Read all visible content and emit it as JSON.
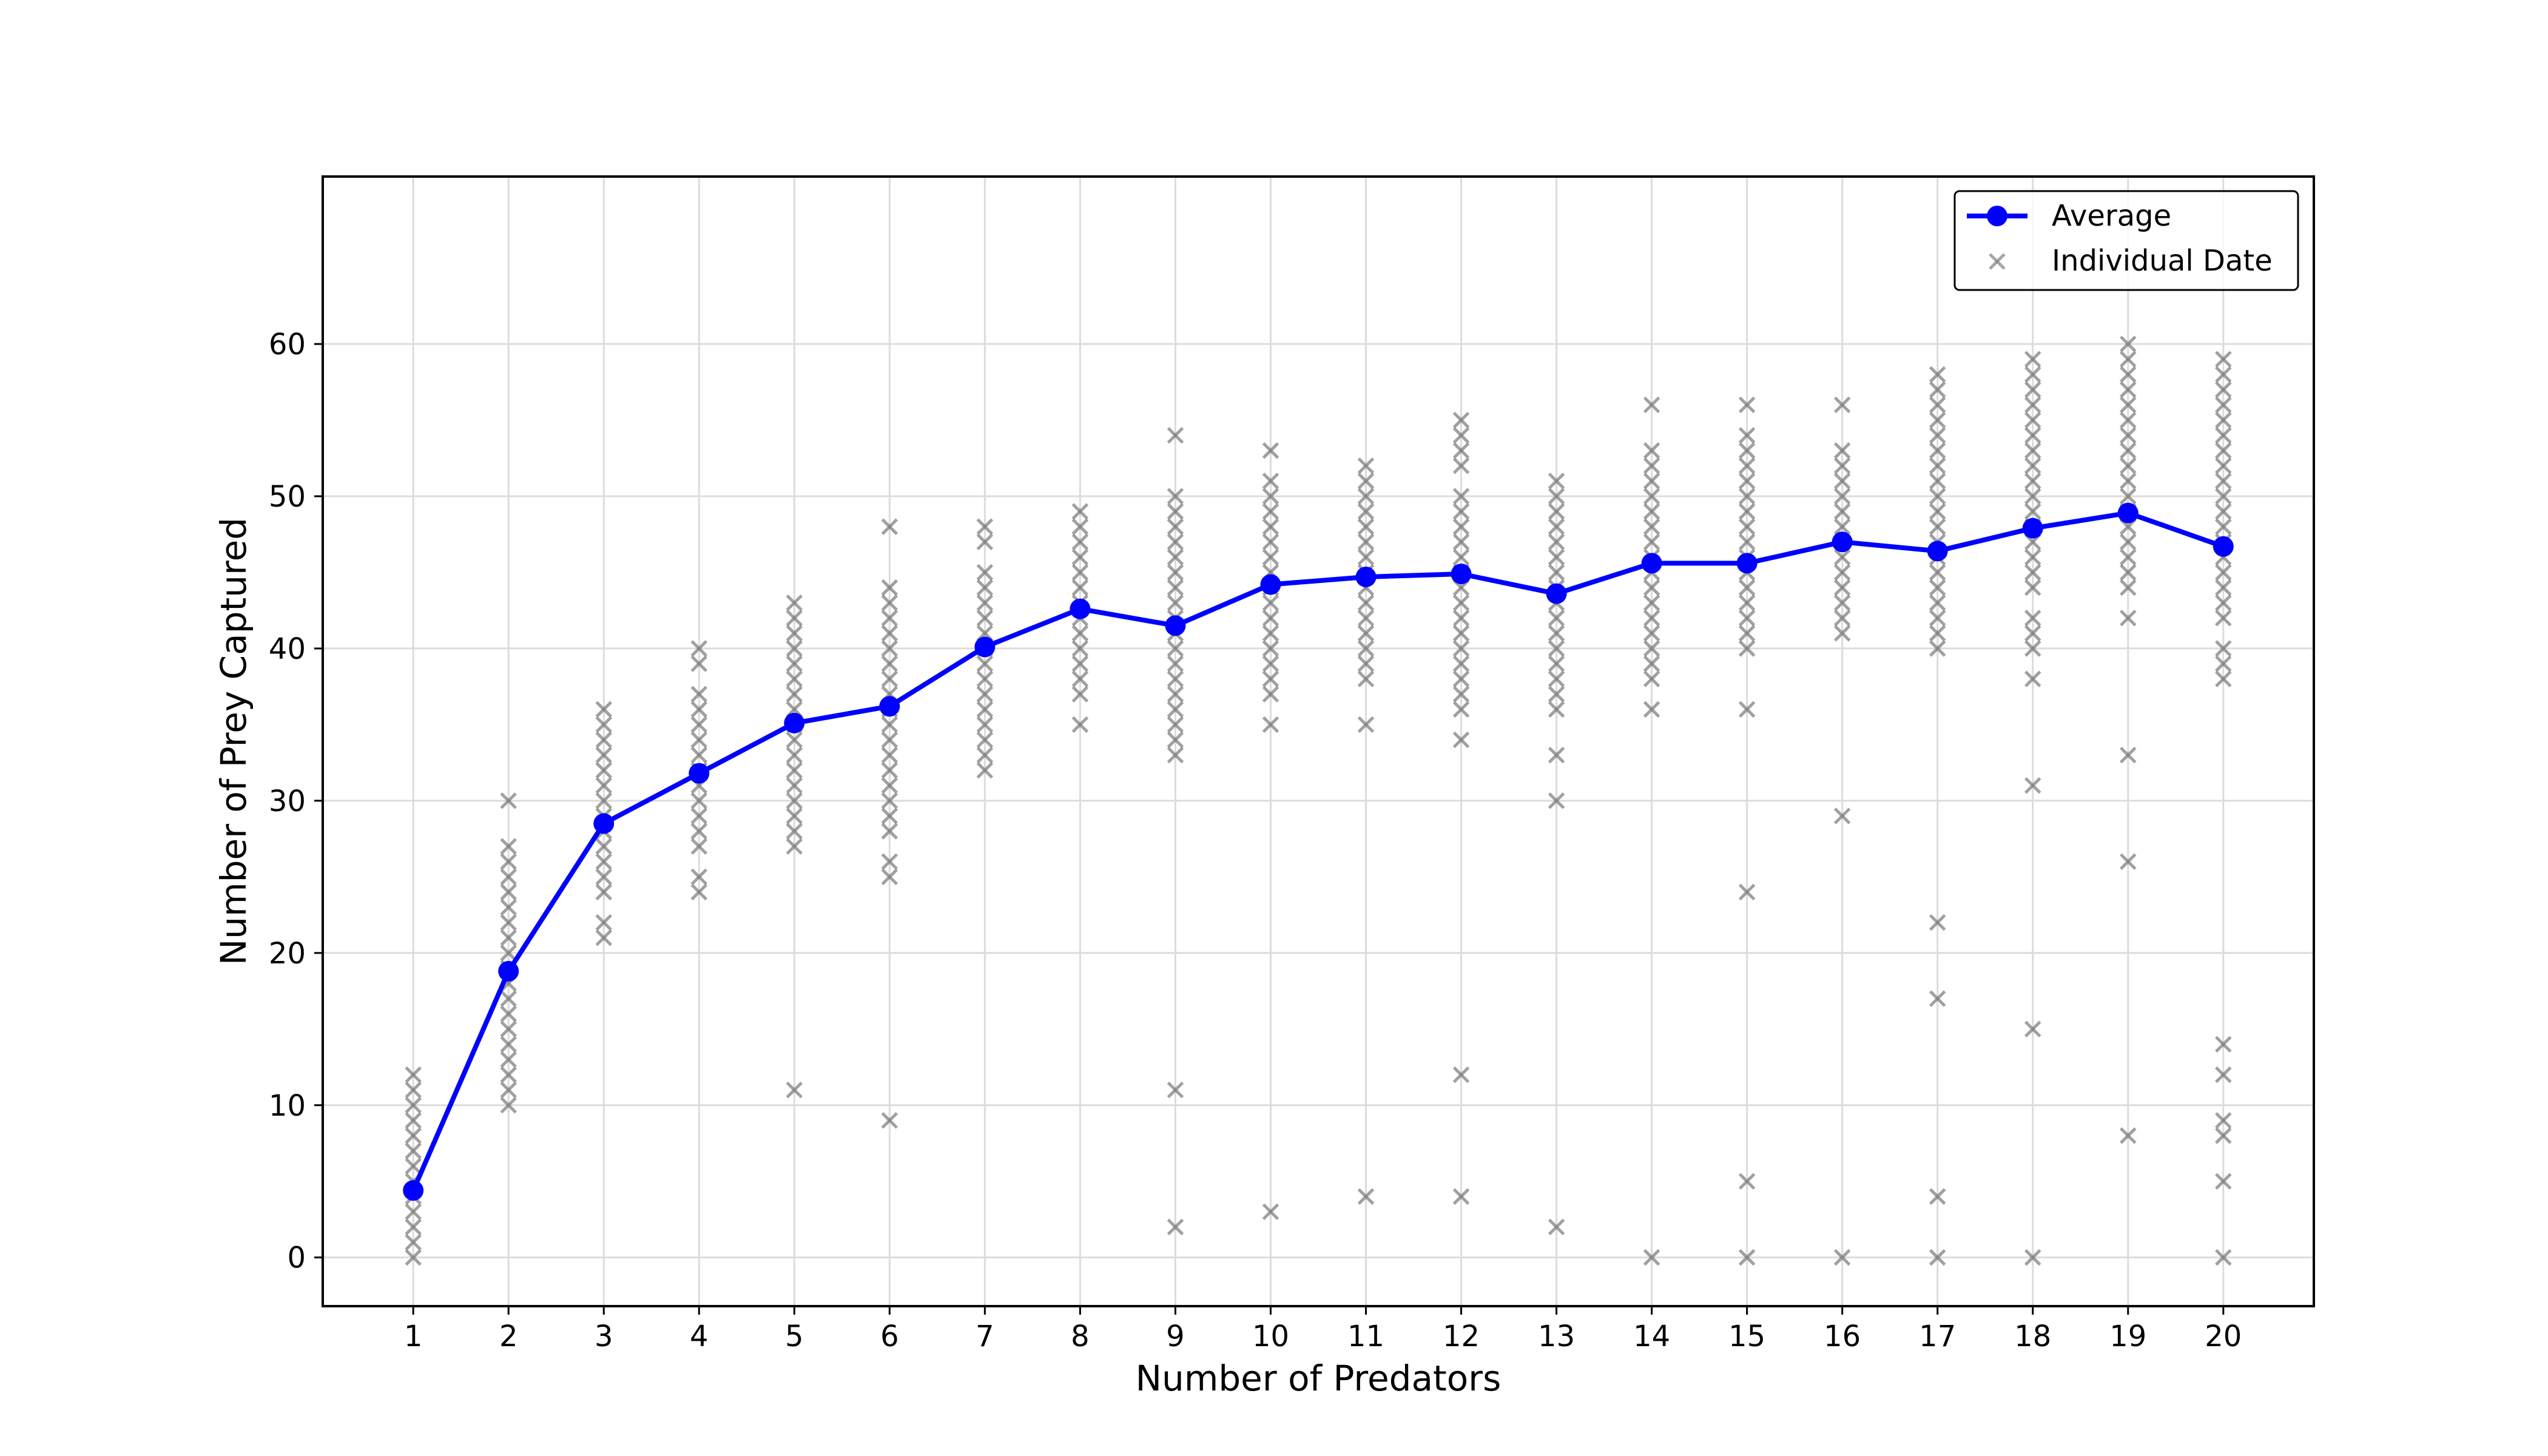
{
  "chart_data": {
    "type": "line",
    "title": "",
    "xlabel": "Number of Predators",
    "ylabel": "Number of Prey Captured",
    "xlim": [
      0.05,
      20.95
    ],
    "ylim": [
      -3.2,
      71
    ],
    "x_ticks": [
      1,
      2,
      3,
      4,
      5,
      6,
      7,
      8,
      9,
      10,
      11,
      12,
      13,
      14,
      15,
      16,
      17,
      18,
      19,
      20
    ],
    "y_ticks": [
      0,
      10,
      20,
      30,
      40,
      50,
      60
    ],
    "grid": true,
    "legend_position": "top-right",
    "colors": {
      "average": "#0000ff",
      "individual": "#808080"
    },
    "series": [
      {
        "name": "Average",
        "type": "line-marker",
        "x": [
          1,
          2,
          3,
          4,
          5,
          6,
          7,
          8,
          9,
          10,
          11,
          12,
          13,
          14,
          15,
          16,
          17,
          18,
          19,
          20
        ],
        "values": [
          4.4,
          18.8,
          28.5,
          31.8,
          35.1,
          36.2,
          40.1,
          42.6,
          41.5,
          44.2,
          44.7,
          44.9,
          43.6,
          45.6,
          45.6,
          47.0,
          46.4,
          47.9,
          48.9,
          46.7
        ]
      },
      {
        "name": "Individual Date",
        "type": "scatter",
        "points": [
          {
            "x": 1,
            "ys": [
              0,
              1,
              2,
              3,
              4,
              5,
              6,
              7,
              8,
              9,
              10,
              11,
              12
            ]
          },
          {
            "x": 2,
            "ys": [
              10,
              11,
              12,
              13,
              14,
              15,
              16,
              17,
              18,
              19,
              20,
              21,
              22,
              23,
              24,
              25,
              26,
              27,
              30
            ]
          },
          {
            "x": 3,
            "ys": [
              21,
              22,
              24,
              25,
              26,
              27,
              28,
              29,
              30,
              31,
              32,
              33,
              34,
              35,
              36
            ]
          },
          {
            "x": 4,
            "ys": [
              24,
              25,
              27,
              28,
              29,
              30,
              31,
              32,
              33,
              34,
              35,
              36,
              37,
              39,
              40
            ]
          },
          {
            "x": 5,
            "ys": [
              11,
              27,
              28,
              29,
              30,
              31,
              32,
              33,
              34,
              35,
              36,
              37,
              38,
              39,
              40,
              41,
              42,
              43
            ]
          },
          {
            "x": 6,
            "ys": [
              9,
              25,
              26,
              28,
              29,
              30,
              31,
              32,
              33,
              34,
              35,
              36,
              37,
              38,
              39,
              40,
              41,
              42,
              43,
              44,
              48
            ]
          },
          {
            "x": 7,
            "ys": [
              32,
              33,
              34,
              35,
              36,
              37,
              38,
              39,
              40,
              41,
              42,
              43,
              44,
              45,
              47,
              48
            ]
          },
          {
            "x": 8,
            "ys": [
              35,
              37,
              38,
              39,
              40,
              41,
              42,
              43,
              44,
              45,
              46,
              47,
              48,
              49
            ]
          },
          {
            "x": 9,
            "ys": [
              2,
              11,
              33,
              34,
              35,
              36,
              37,
              38,
              39,
              40,
              41,
              42,
              43,
              44,
              45,
              46,
              47,
              48,
              49,
              50,
              54
            ]
          },
          {
            "x": 10,
            "ys": [
              3,
              35,
              37,
              38,
              39,
              40,
              41,
              42,
              43,
              44,
              45,
              46,
              47,
              48,
              49,
              50,
              51,
              53
            ]
          },
          {
            "x": 11,
            "ys": [
              4,
              35,
              38,
              39,
              40,
              41,
              42,
              43,
              44,
              45,
              46,
              47,
              48,
              49,
              50,
              51,
              52
            ]
          },
          {
            "x": 12,
            "ys": [
              4,
              12,
              34,
              36,
              37,
              38,
              39,
              40,
              41,
              42,
              43,
              44,
              45,
              46,
              47,
              48,
              49,
              50,
              52,
              53,
              54,
              55
            ]
          },
          {
            "x": 13,
            "ys": [
              2,
              30,
              33,
              36,
              37,
              38,
              39,
              40,
              41,
              42,
              43,
              44,
              45,
              46,
              47,
              48,
              49,
              50,
              51
            ]
          },
          {
            "x": 14,
            "ys": [
              0,
              36,
              38,
              39,
              40,
              41,
              42,
              43,
              44,
              45,
              46,
              47,
              48,
              49,
              50,
              51,
              52,
              53,
              56
            ]
          },
          {
            "x": 15,
            "ys": [
              0,
              5,
              24,
              36,
              40,
              41,
              42,
              43,
              44,
              45,
              46,
              47,
              48,
              49,
              50,
              51,
              52,
              53,
              54,
              56
            ]
          },
          {
            "x": 16,
            "ys": [
              0,
              29,
              41,
              42,
              43,
              44,
              45,
              46,
              47,
              48,
              49,
              50,
              51,
              52,
              53,
              56
            ]
          },
          {
            "x": 17,
            "ys": [
              0,
              4,
              17,
              22,
              40,
              41,
              42,
              43,
              44,
              45,
              46,
              47,
              48,
              49,
              50,
              51,
              52,
              53,
              54,
              55,
              56,
              57,
              58
            ]
          },
          {
            "x": 18,
            "ys": [
              0,
              15,
              31,
              38,
              40,
              41,
              42,
              44,
              45,
              46,
              47,
              48,
              49,
              50,
              51,
              52,
              53,
              54,
              55,
              56,
              57,
              58,
              59
            ]
          },
          {
            "x": 19,
            "ys": [
              8,
              26,
              33,
              42,
              44,
              45,
              46,
              47,
              48,
              49,
              50,
              51,
              52,
              53,
              54,
              55,
              56,
              57,
              58,
              59,
              60
            ]
          },
          {
            "x": 20,
            "ys": [
              0,
              5,
              8,
              9,
              12,
              14,
              38,
              39,
              40,
              42,
              43,
              44,
              45,
              46,
              47,
              48,
              49,
              50,
              51,
              52,
              53,
              54,
              55,
              56,
              57,
              58,
              59
            ]
          }
        ]
      }
    ]
  }
}
